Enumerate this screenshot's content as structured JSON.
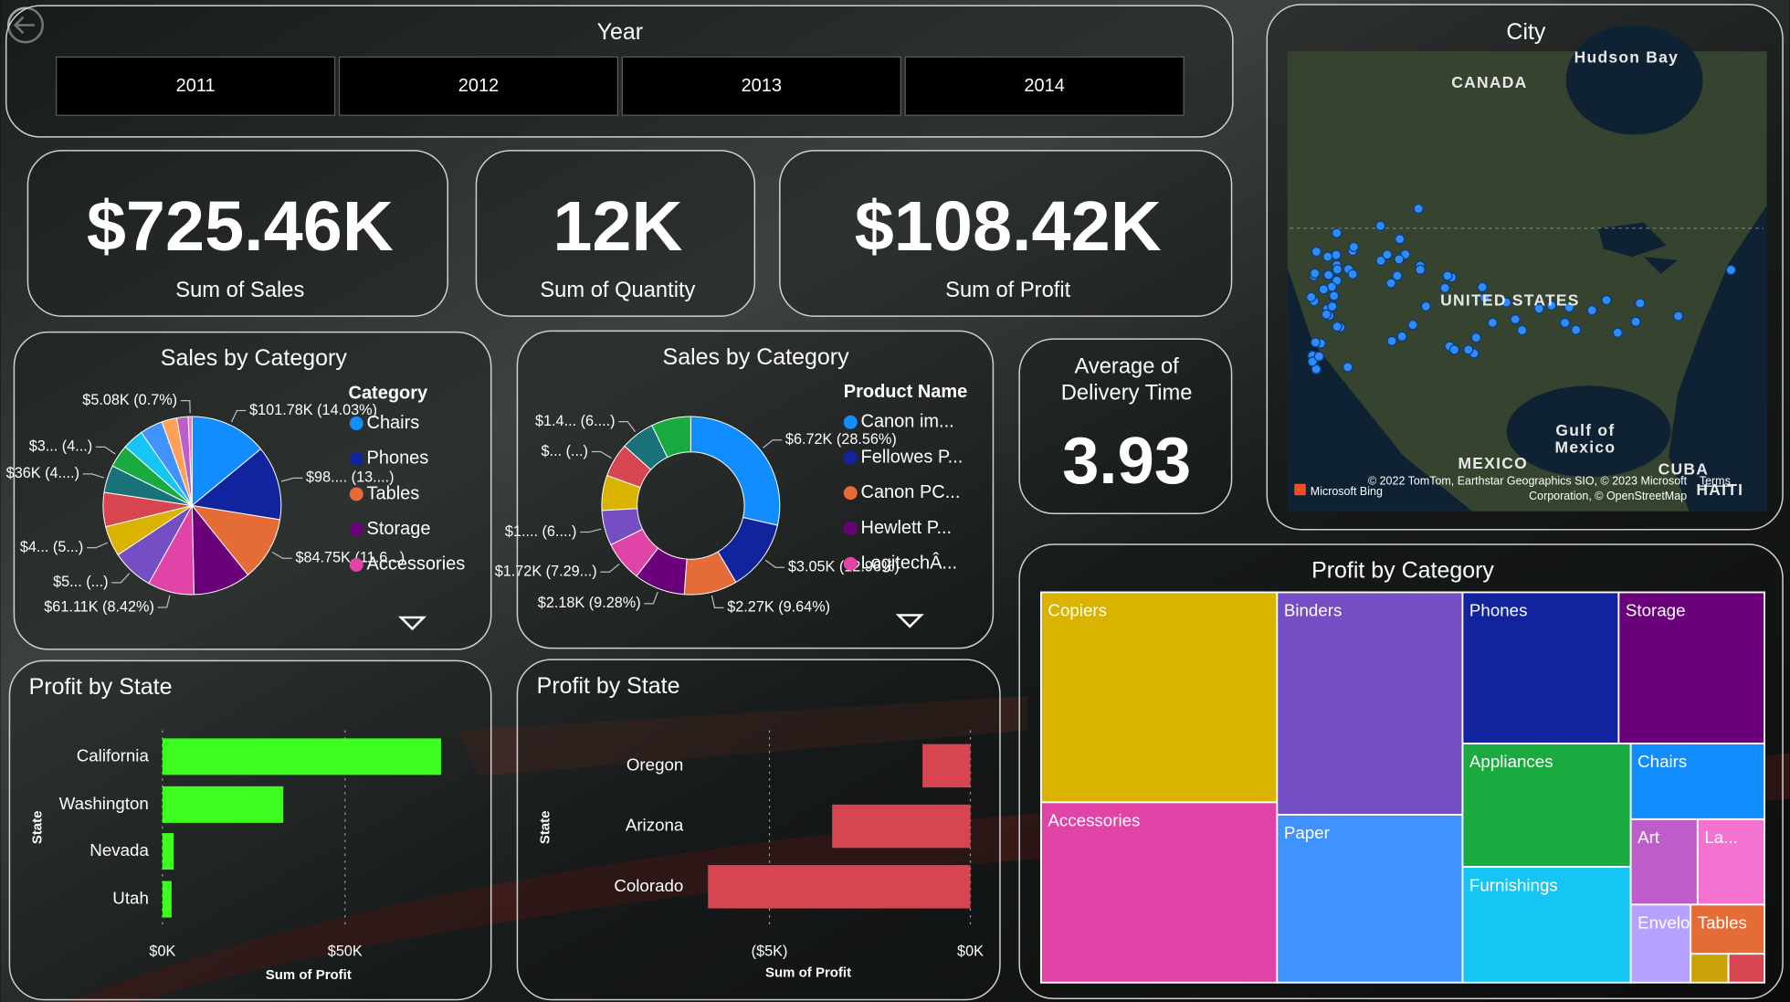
{
  "slicer": {
    "title": "Year",
    "options": [
      "2011",
      "2012",
      "2013",
      "2014"
    ]
  },
  "cards": [
    {
      "value": "$725.46K",
      "label": "Sum of Sales"
    },
    {
      "value": "12K",
      "label": "Sum of Quantity"
    },
    {
      "value": "$108.42K",
      "label": "Sum of Profit"
    },
    {
      "title": [
        "Average of",
        "Delivery Time"
      ],
      "value": "3.93"
    }
  ],
  "map": {
    "title": "City",
    "labels": [
      "Hudson Bay",
      "CANADA",
      "UNITED STATES",
      "Gulf of",
      "Mexico",
      "MEXICO",
      "CUBA",
      "HAITI"
    ],
    "attribution": [
      "© 2022 TomTom, Earthstar Geographics SIO, © 2023 Microsoft",
      "Corporation, © OpenStreetMap"
    ],
    "terms": "Terms",
    "provider": "Microsoft Bing"
  },
  "chart_data": [
    {
      "type": "pie",
      "title": "Sales by Category",
      "legend_title": "Category",
      "categories": [
        "Chairs",
        "Phones",
        "Tables",
        "Storage",
        "Accessories",
        null,
        null,
        null,
        null,
        null,
        null,
        null,
        null,
        null,
        null
      ],
      "values": [
        101780,
        98000,
        84750,
        75740,
        61110,
        55000,
        40000,
        45000,
        36000,
        30000,
        28000,
        30000,
        20000,
        15000,
        5080
      ],
      "value_labels": [
        "$101.78K (14.03%)",
        "$98.... (13....)",
        "$84.75K (11.6...)",
        null,
        "$61.11K (8.42%)",
        "$5... (...)",
        "$4... (5...)",
        null,
        "$36K (4....)",
        "$3... (4...)",
        null,
        null,
        null,
        null,
        "$5.08K (0.7%)"
      ],
      "colors": [
        "#118DFF",
        "#12239E",
        "#E66C37",
        "#6B007B",
        "#E044A7",
        "#744EC2",
        "#D9B300",
        "#D64550",
        "#197278",
        "#1AAB40",
        "#15C6F4",
        "#4092FF",
        "#FFA058",
        "#BE5DC9",
        "#F472D0"
      ]
    },
    {
      "type": "donut",
      "title": "Sales by Category",
      "legend_title": "Product Name",
      "categories": [
        "Canon im...",
        "Fellowes P...",
        "Canon PC...",
        "Hewlett P...",
        "LogitechÂ...",
        null,
        null,
        null,
        null,
        null
      ],
      "values": [
        6720,
        3050,
        2270,
        2180,
        1720,
        1500,
        1500,
        1450,
        1450,
        1689
      ],
      "value_labels": [
        "$6.72K (28.56%)",
        "$3.05K (12.96%)",
        "$2.27K (9.64%)",
        "$2.18K (9.28%)",
        "$1.72K (7.29...)",
        "$1.... (6....)",
        null,
        "$... (...)",
        "$1.4... (6....)",
        null
      ],
      "colors": [
        "#118DFF",
        "#12239E",
        "#E66C37",
        "#6B007B",
        "#E044A7",
        "#744EC2",
        "#D9B300",
        "#D64550",
        "#197278",
        "#1AAB40"
      ]
    },
    {
      "type": "bar",
      "title": "Profit by State",
      "categories": [
        "California",
        "Washington",
        "Nevada",
        "Utah"
      ],
      "values": [
        76300,
        33100,
        3100,
        2500
      ],
      "color": "#3DFF1F",
      "xlim": [
        0,
        84000
      ],
      "xticks": [
        {
          "value": 0,
          "label": "$0K"
        },
        {
          "value": 50000,
          "label": "$50K"
        }
      ],
      "xlabel": "Sum of Profit",
      "ylabel": "State",
      "grid": true
    },
    {
      "type": "bar",
      "title": "Profit by State",
      "categories": [
        "Oregon",
        "Arizona",
        "Colorado"
      ],
      "values": [
        -1190,
        -3440,
        -6530
      ],
      "color": "#D64550",
      "xlim": [
        -6800,
        300
      ],
      "xticks": [
        {
          "value": -5000,
          "label": "($5K)"
        },
        {
          "value": 0,
          "label": "$0K"
        }
      ],
      "xlabel": "Sum of Profit",
      "ylabel": "State",
      "grid": true
    },
    {
      "type": "treemap",
      "title": "Profit by Category",
      "categories": [
        "Copiers",
        "Accessories",
        "Binders",
        "Paper",
        "Phones",
        "Storage",
        "Appliances",
        "Furnishings",
        "Chairs",
        "Art",
        "La...",
        "Envelo...",
        "Tables",
        null,
        null
      ],
      "values": [
        19100,
        16400,
        15900,
        12000,
        9100,
        8500,
        8000,
        7500,
        3900,
        2200,
        2200,
        1800,
        1400,
        420,
        400
      ],
      "colors": [
        "#D9B300",
        "#E044A7",
        "#744EC2",
        "#4092FF",
        "#12239E",
        "#6B007B",
        "#1AAB40",
        "#15C6F4",
        "#118DFF",
        "#BE5DC9",
        "#F472D0",
        "#B5A1FF",
        "#E66C37",
        "#C9A20C",
        "#D64550"
      ]
    }
  ]
}
